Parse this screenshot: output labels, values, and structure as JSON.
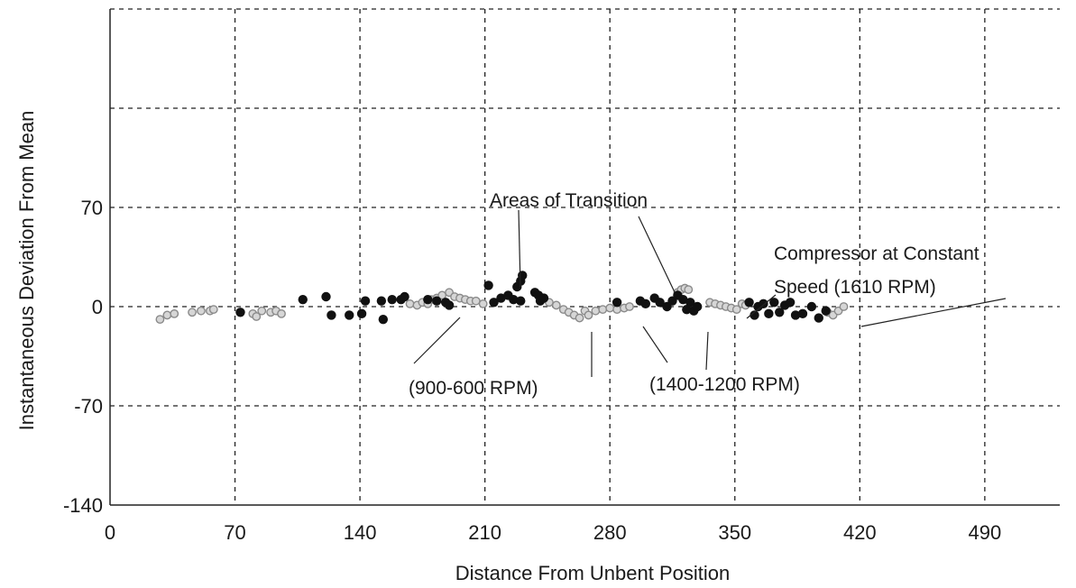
{
  "chart_data": {
    "type": "scatter",
    "title": "",
    "xlabel": "Distance From Unbent Position",
    "ylabel": "Instantaneous Deviation From  Mean",
    "xlim": [
      0,
      532
    ],
    "ylim": [
      -140,
      210
    ],
    "xticks": [
      0,
      70,
      140,
      210,
      280,
      350,
      420,
      490
    ],
    "yticks": [
      -140,
      -70,
      0,
      70
    ],
    "x_tick_labels": [
      "0",
      "70",
      "140",
      "210",
      "280",
      "350",
      "420",
      "490"
    ],
    "y_tick_labels": [
      "-140",
      "-70",
      "0",
      "70"
    ],
    "x_gridlines": [
      70,
      140,
      210,
      280,
      350,
      420,
      490
    ],
    "y_gridlines": [
      -70,
      0,
      70,
      140,
      210
    ],
    "grid": true,
    "legend": null,
    "series": [
      {
        "marker": "filled-dark",
        "color": "#111111",
        "points": [
          [
            73,
            -4
          ],
          [
            108,
            5
          ],
          [
            121,
            7
          ],
          [
            124,
            -6
          ],
          [
            134,
            -6
          ],
          [
            141,
            -5
          ],
          [
            143,
            4
          ],
          [
            152,
            4
          ],
          [
            153,
            -9
          ],
          [
            158,
            5
          ],
          [
            163,
            5
          ],
          [
            165,
            7
          ],
          [
            178,
            5
          ],
          [
            183,
            4
          ],
          [
            188,
            3
          ],
          [
            190,
            1
          ],
          [
            212,
            15
          ],
          [
            215,
            3
          ],
          [
            219,
            6
          ],
          [
            223,
            8
          ],
          [
            226,
            5
          ],
          [
            228,
            14
          ],
          [
            230,
            18
          ],
          [
            231,
            22
          ],
          [
            230,
            4
          ],
          [
            238,
            10
          ],
          [
            240,
            8
          ],
          [
            241,
            4
          ],
          [
            243,
            6
          ],
          [
            284,
            3
          ],
          [
            297,
            4
          ],
          [
            300,
            2
          ],
          [
            305,
            6
          ],
          [
            308,
            3
          ],
          [
            312,
            0
          ],
          [
            315,
            4
          ],
          [
            318,
            8
          ],
          [
            321,
            5
          ],
          [
            323,
            -2
          ],
          [
            325,
            3
          ],
          [
            327,
            -3
          ],
          [
            329,
            0
          ],
          [
            358,
            3
          ],
          [
            361,
            -6
          ],
          [
            363,
            0
          ],
          [
            366,
            2
          ],
          [
            369,
            -5
          ],
          [
            372,
            3
          ],
          [
            375,
            -4
          ],
          [
            378,
            1
          ],
          [
            381,
            3
          ],
          [
            384,
            -6
          ],
          [
            388,
            -5
          ],
          [
            393,
            0
          ],
          [
            397,
            -8
          ],
          [
            401,
            -3
          ]
        ]
      },
      {
        "marker": "hollow-grey",
        "color": "#8a8a8a",
        "points": [
          [
            28,
            -9
          ],
          [
            32,
            -6
          ],
          [
            36,
            -5
          ],
          [
            46,
            -4
          ],
          [
            51,
            -3
          ],
          [
            56,
            -3
          ],
          [
            58,
            -2
          ],
          [
            80,
            -5
          ],
          [
            82,
            -7
          ],
          [
            85,
            -3
          ],
          [
            90,
            -4
          ],
          [
            93,
            -3
          ],
          [
            96,
            -5
          ],
          [
            168,
            2
          ],
          [
            172,
            1
          ],
          [
            175,
            3
          ],
          [
            178,
            2
          ],
          [
            180,
            5
          ],
          [
            183,
            6
          ],
          [
            186,
            8
          ],
          [
            190,
            10
          ],
          [
            193,
            7
          ],
          [
            196,
            6
          ],
          [
            199,
            5
          ],
          [
            202,
            4
          ],
          [
            205,
            4
          ],
          [
            209,
            2
          ],
          [
            246,
            3
          ],
          [
            250,
            1
          ],
          [
            254,
            -2
          ],
          [
            257,
            -4
          ],
          [
            260,
            -6
          ],
          [
            263,
            -8
          ],
          [
            266,
            -3
          ],
          [
            268,
            -6
          ],
          [
            272,
            -3
          ],
          [
            276,
            -2
          ],
          [
            280,
            -1
          ],
          [
            284,
            -2
          ],
          [
            288,
            -1
          ],
          [
            291,
            0
          ],
          [
            318,
            10
          ],
          [
            320,
            12
          ],
          [
            322,
            13
          ],
          [
            324,
            12
          ],
          [
            336,
            3
          ],
          [
            339,
            2
          ],
          [
            342,
            1
          ],
          [
            345,
            0
          ],
          [
            348,
            -1
          ],
          [
            351,
            -2
          ],
          [
            354,
            2
          ],
          [
            356,
            1
          ],
          [
            402,
            -4
          ],
          [
            405,
            -6
          ],
          [
            408,
            -3
          ],
          [
            411,
            0
          ]
        ]
      }
    ],
    "annotations": [
      {
        "text": "Areas of Transition"
      },
      {
        "text": "Compressor at Constant"
      },
      {
        "text": "Speed (1610 RPM)"
      },
      {
        "text": "(900-600 RPM)"
      },
      {
        "text": "(1400-1200 RPM)"
      }
    ]
  }
}
